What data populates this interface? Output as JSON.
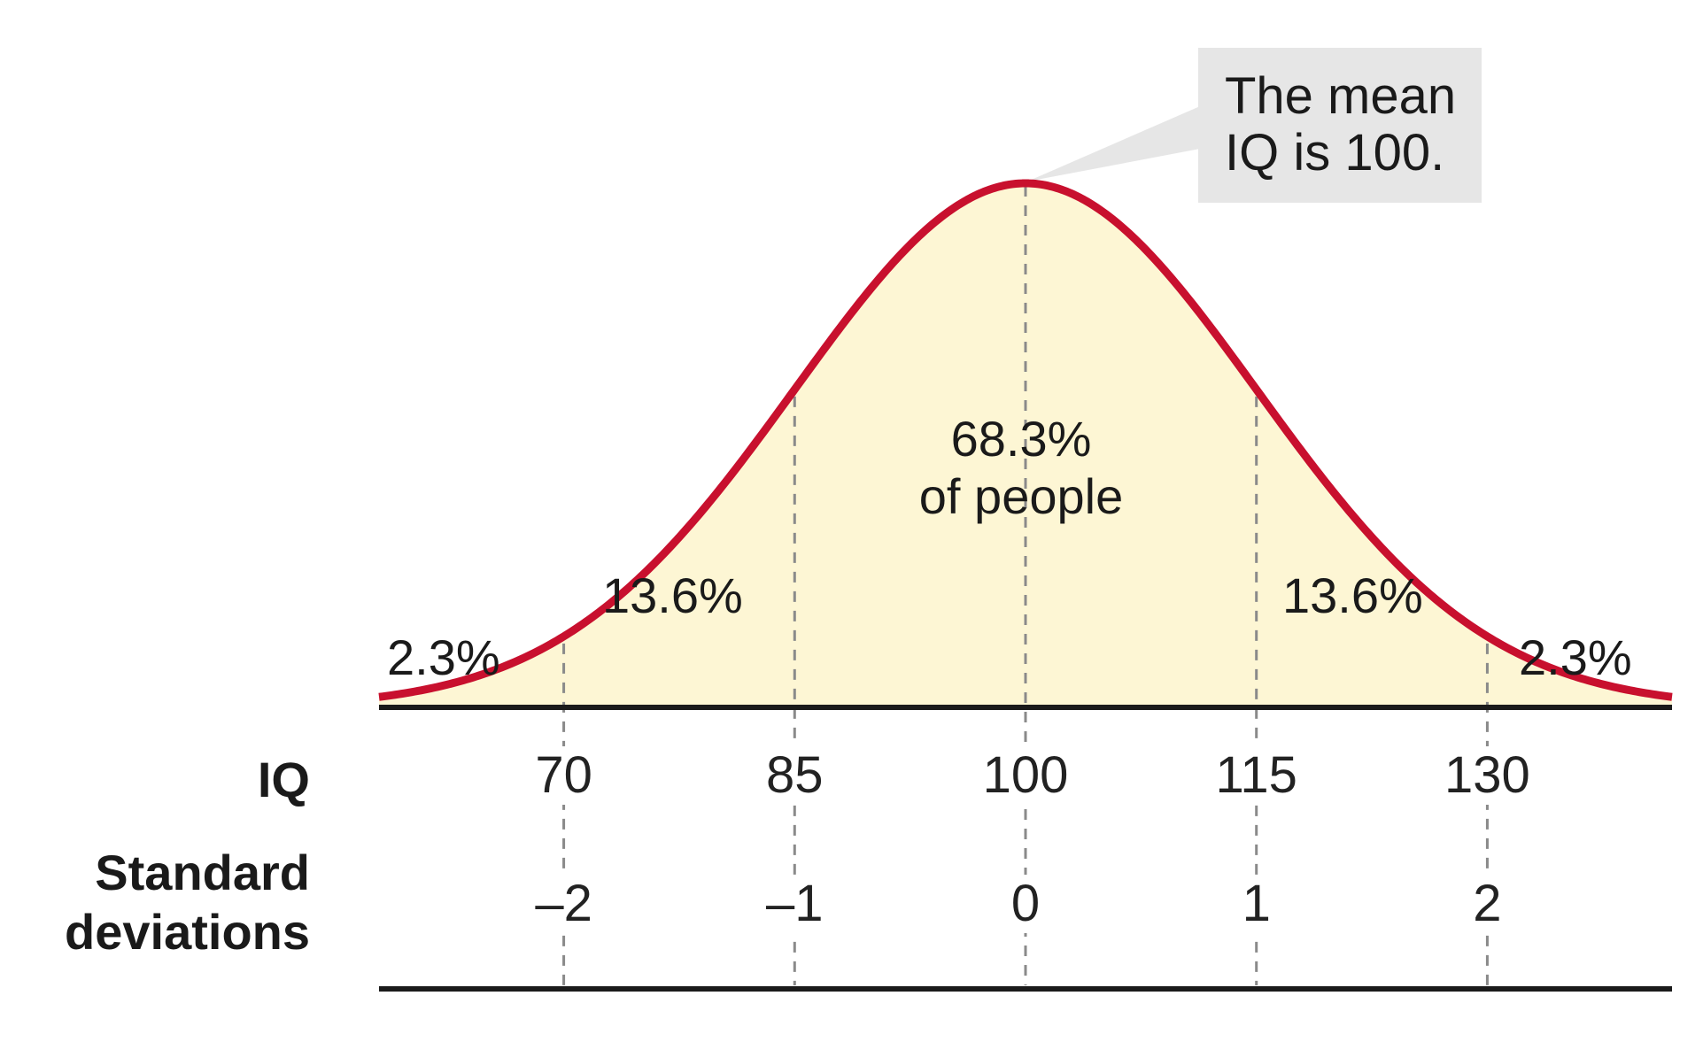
{
  "chart_data": {
    "type": "area",
    "title": "",
    "distribution": "normal",
    "mean": 100,
    "sd": 15,
    "xlim": [
      58,
      142
    ],
    "iq_ticks": [
      {
        "iq": 70,
        "label": "70"
      },
      {
        "iq": 85,
        "label": "85"
      },
      {
        "iq": 100,
        "label": "100"
      },
      {
        "iq": 115,
        "label": "115"
      },
      {
        "iq": 130,
        "label": "130"
      }
    ],
    "sd_ticks": [
      {
        "iq": 70,
        "label": "–2"
      },
      {
        "iq": 85,
        "label": "–1"
      },
      {
        "iq": 100,
        "label": "0"
      },
      {
        "iq": 115,
        "label": "1"
      },
      {
        "iq": 130,
        "label": "2"
      }
    ],
    "segments": [
      {
        "from": 58,
        "to": 70,
        "value": 2.3,
        "label": "2.3%"
      },
      {
        "from": 70,
        "to": 85,
        "value": 13.6,
        "label": "13.6%"
      },
      {
        "from": 85,
        "to": 115,
        "value": 68.3,
        "label": "68.3%",
        "sublabel": "of people"
      },
      {
        "from": 115,
        "to": 130,
        "value": 13.6,
        "label": "13.6%"
      },
      {
        "from": 130,
        "to": 142,
        "value": 2.3,
        "label": "2.3%"
      }
    ],
    "row_labels": {
      "iq": "IQ",
      "sd_line1": "Standard",
      "sd_line2": "deviations"
    },
    "callout": {
      "line1": "The mean",
      "line2": "IQ is 100."
    },
    "colors": {
      "curve": "#c8102e",
      "fill": "#fdf6d4",
      "callout_bg": "#e6e6e6",
      "axis": "#1a1a1a",
      "guide": "#8a8a8a"
    }
  }
}
